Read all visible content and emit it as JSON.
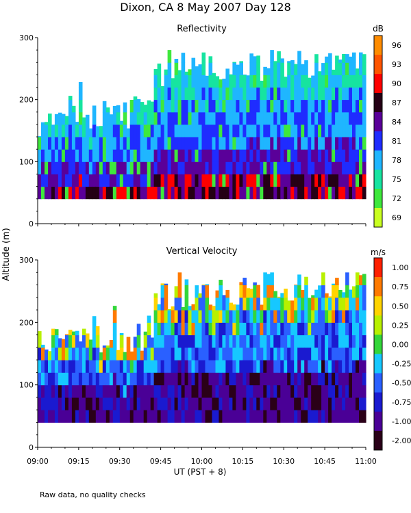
{
  "page_title": "Dixon, CA  8 May 2007  Day 128",
  "shared_ylabel": "Altitude (m)",
  "shared_xlabel": "UT  (PST + 8)",
  "footnote": "Raw data, no quality checks",
  "chart_data": [
    {
      "type": "heatmap",
      "title": "Reflectivity",
      "units": "dB",
      "xlim": [
        0,
        120
      ],
      "ylim": [
        0,
        300
      ],
      "x_tick_labels": [
        "09:00",
        "09:15",
        "09:30",
        "09:45",
        "10:00",
        "10:15",
        "10:30",
        "10:45",
        "11:00"
      ],
      "y_tick_labels": [
        "0",
        "100",
        "200",
        "300"
      ],
      "y_tick_values": [
        0,
        100,
        200,
        300
      ],
      "colorbar_labels": [
        "96",
        "93",
        "90",
        "87",
        "84",
        "81",
        "78",
        "75",
        "72",
        "69"
      ],
      "colorbar_colors": [
        "#ff8c00",
        "#ff5500",
        "#ff0000",
        "#250015",
        "#5a0099",
        "#1f2cff",
        "#1fb6ff",
        "#16e4a0",
        "#3ee83c",
        "#c9ff21"
      ],
      "data_range_altitude_m": [
        40,
        280
      ]
    },
    {
      "type": "heatmap",
      "title": "Vertical Velocity",
      "units": "m/s",
      "xlim": [
        0,
        120
      ],
      "ylim": [
        0,
        300
      ],
      "x_tick_labels": [
        "09:00",
        "09:15",
        "09:30",
        "09:45",
        "10:00",
        "10:15",
        "10:30",
        "10:45",
        "11:00"
      ],
      "y_tick_labels": [
        "0",
        "100",
        "200",
        "300"
      ],
      "y_tick_values": [
        0,
        100,
        200,
        300
      ],
      "colorbar_labels": [
        "1.00",
        "0.75",
        "0.50",
        "0.25",
        "0.00",
        "-0.25",
        "-0.50",
        "-0.75",
        "-1.00",
        "-2.00"
      ],
      "colorbar_colors": [
        "#ff2000",
        "#ff7a00",
        "#ffd400",
        "#b8f000",
        "#33d63a",
        "#16c8ff",
        "#2a60ff",
        "#1a1ad0",
        "#4a0096",
        "#2a0018"
      ],
      "data_range_altitude_m": [
        40,
        280
      ]
    }
  ]
}
